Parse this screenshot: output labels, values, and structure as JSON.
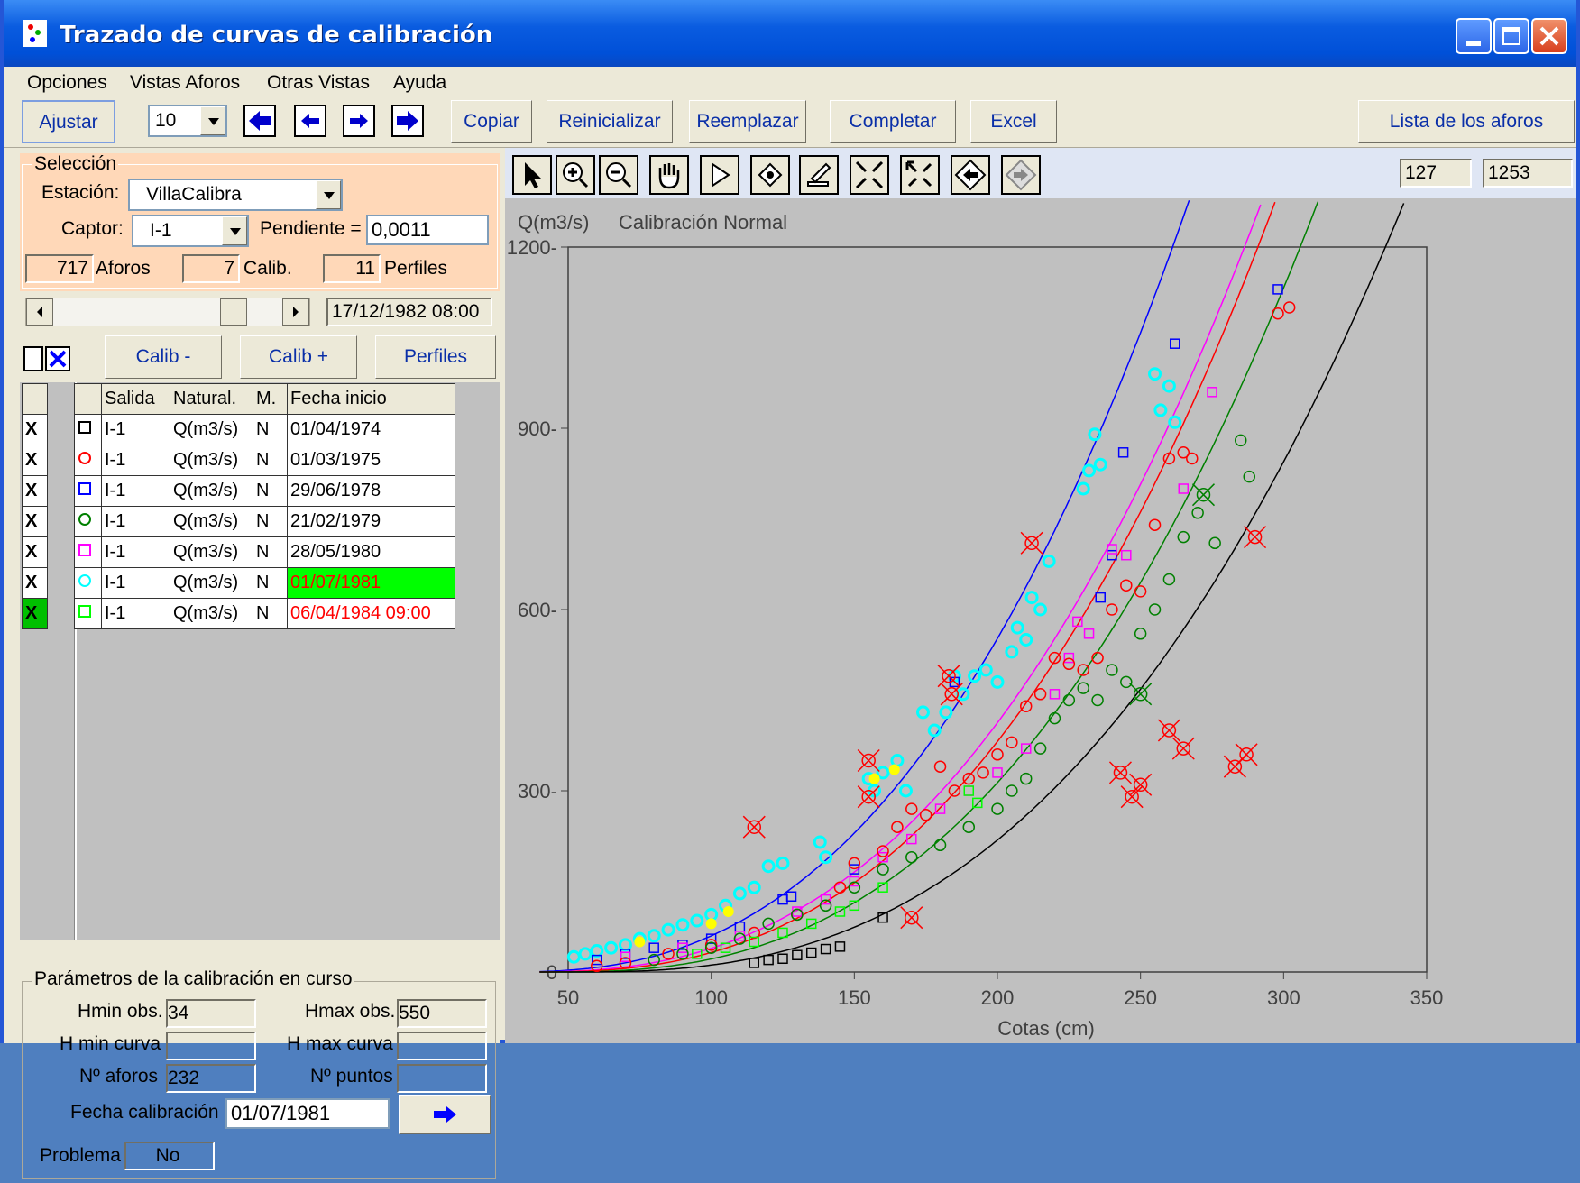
{
  "window": {
    "title": "Trazado de curvas de calibración"
  },
  "menu": [
    "Opciones",
    "Vistas Aforos",
    "Otras Vistas",
    "Ayuda"
  ],
  "toolbar": {
    "ajustar": "Ajustar",
    "step_value": "10",
    "copiar": "Copiar",
    "reinicializar": "Reinicializar",
    "reemplazar": "Reemplazar",
    "completar": "Completar",
    "excel": "Excel",
    "lista": "Lista de los aforos"
  },
  "seleccion": {
    "legend": "Selección",
    "estacion_label": "Estación:",
    "estacion_value": "VillaCalibra",
    "captor_label": "Captor:",
    "captor_value": "I-1",
    "pendiente_label": "Pendiente =",
    "pendiente_value": "0,0011",
    "aforos_count": "717",
    "aforos_label": "Aforos",
    "calib_count": "7",
    "calib_label": "Calib.",
    "perfiles_count": "11",
    "perfiles_label": "Perfiles"
  },
  "nav": {
    "date": "17/12/1982 08:00",
    "slider_fraction": 0.82,
    "calib_minus": "Calib -",
    "calib_plus": "Calib +",
    "perfiles": "Perfiles"
  },
  "table": {
    "headers": [
      "Salida",
      "Natural.",
      "M.",
      "Fecha inicio"
    ],
    "rows": [
      {
        "x": "X",
        "symbol": "square",
        "color": "#000000",
        "salida": "I-1",
        "natural": "Q(m3/s)",
        "m": "N",
        "fecha": "01/04/1974"
      },
      {
        "x": "X",
        "symbol": "circle",
        "color": "#ff0000",
        "salida": "I-1",
        "natural": "Q(m3/s)",
        "m": "N",
        "fecha": "01/03/1975"
      },
      {
        "x": "X",
        "symbol": "square",
        "color": "#0000ff",
        "salida": "I-1",
        "natural": "Q(m3/s)",
        "m": "N",
        "fecha": "29/06/1978"
      },
      {
        "x": "X",
        "symbol": "circle",
        "color": "#008000",
        "salida": "I-1",
        "natural": "Q(m3/s)",
        "m": "N",
        "fecha": "21/02/1979"
      },
      {
        "x": "X",
        "symbol": "square",
        "color": "#ff00ff",
        "salida": "I-1",
        "natural": "Q(m3/s)",
        "m": "N",
        "fecha": "28/05/1980"
      },
      {
        "x": "X",
        "symbol": "circle",
        "color": "#00ffff",
        "salida": "I-1",
        "natural": "Q(m3/s)",
        "m": "N",
        "fecha": "01/07/1981"
      },
      {
        "x": "X",
        "symbol": "square",
        "color": "#00ff00",
        "salida": "I-1",
        "natural": "Q(m3/s)",
        "m": "N",
        "fecha": "06/04/1984 09:00"
      }
    ]
  },
  "params": {
    "legend": "Parámetros de la calibración en curso",
    "hmin_obs_label": "Hmin obs.",
    "hmin_obs": "34",
    "hmax_obs_label": "Hmax obs.",
    "hmax_obs": "550",
    "hmin_curva_label": "H min curva",
    "hmin_curva": "",
    "hmax_curva_label": "H max curva",
    "hmax_curva": "",
    "n_aforos_label": "Nº aforos",
    "n_aforos": "232",
    "n_puntos_label": "Nº puntos",
    "n_puntos": "",
    "fecha_label": "Fecha calibración",
    "fecha": "01/07/1981",
    "problema_label": "Problema",
    "problema": "No"
  },
  "chart_toolbar": {
    "icons": [
      "pointer-icon",
      "zoom-in-icon",
      "zoom-out-icon",
      "pan-hand-icon",
      "select-arrow-icon",
      "fit-icon",
      "edit-icon",
      "shrink-icon",
      "expand-icon",
      "back-icon",
      "forward-icon"
    ],
    "coord_x": "127",
    "coord_y": "1253"
  },
  "chart_data": {
    "type": "scatter",
    "title": "Calibración Normal",
    "ylabel": "Q(m3/s)",
    "xlabel": "Cotas (cm)",
    "xlim": [
      50,
      350
    ],
    "ylim": [
      0,
      1200
    ],
    "x_ticks": [
      50,
      100,
      150,
      200,
      250,
      300,
      350
    ],
    "y_ticks": [
      0,
      300,
      600,
      900,
      1200
    ],
    "curves": [
      {
        "color": "#0000ff",
        "h0": 28,
        "a": 0.0011,
        "b": 2.55
      },
      {
        "color": "#ff00ff",
        "h0": 34,
        "a": 0.0009,
        "b": 2.55
      },
      {
        "color": "#ff0000",
        "h0": 38,
        "a": 0.0008,
        "b": 2.57
      },
      {
        "color": "#008000",
        "h0": 45,
        "a": 0.0007,
        "b": 2.58
      },
      {
        "color": "#000000",
        "h0": 52,
        "a": 0.00045,
        "b": 2.62
      }
    ],
    "series": [
      {
        "color": "#00ffff",
        "marker": "circle",
        "points": [
          [
            52,
            25
          ],
          [
            56,
            30
          ],
          [
            60,
            35
          ],
          [
            65,
            40
          ],
          [
            70,
            45
          ],
          [
            75,
            55
          ],
          [
            80,
            60
          ],
          [
            85,
            70
          ],
          [
            90,
            78
          ],
          [
            95,
            85
          ],
          [
            100,
            95
          ],
          [
            105,
            110
          ],
          [
            110,
            130
          ],
          [
            115,
            140
          ],
          [
            120,
            175
          ],
          [
            125,
            180
          ],
          [
            138,
            215
          ],
          [
            140,
            190
          ],
          [
            155,
            320
          ],
          [
            157,
            300
          ],
          [
            160,
            330
          ],
          [
            165,
            350
          ],
          [
            168,
            300
          ],
          [
            174,
            430
          ],
          [
            178,
            400
          ],
          [
            182,
            430
          ],
          [
            185,
            490
          ],
          [
            188,
            460
          ],
          [
            192,
            490
          ],
          [
            196,
            500
          ],
          [
            200,
            480
          ],
          [
            205,
            530
          ],
          [
            207,
            570
          ],
          [
            210,
            550
          ],
          [
            212,
            620
          ],
          [
            215,
            600
          ],
          [
            218,
            680
          ],
          [
            230,
            800
          ],
          [
            232,
            830
          ],
          [
            234,
            890
          ],
          [
            236,
            840
          ],
          [
            255,
            990
          ],
          [
            257,
            930
          ],
          [
            260,
            970
          ],
          [
            262,
            910
          ]
        ]
      },
      {
        "color": "#ffff00",
        "marker": "dot",
        "points": [
          [
            75,
            50
          ],
          [
            100,
            80
          ],
          [
            106,
            100
          ],
          [
            157,
            320
          ],
          [
            164,
            335
          ]
        ]
      },
      {
        "color": "#0000ff",
        "marker": "square",
        "points": [
          [
            60,
            20
          ],
          [
            70,
            30
          ],
          [
            80,
            40
          ],
          [
            90,
            45
          ],
          [
            100,
            55
          ],
          [
            110,
            75
          ],
          [
            125,
            120
          ],
          [
            128,
            125
          ],
          [
            150,
            170
          ],
          [
            185,
            480
          ],
          [
            236,
            620
          ],
          [
            240,
            690
          ],
          [
            244,
            860
          ],
          [
            262,
            1040
          ],
          [
            298,
            1130
          ]
        ]
      },
      {
        "color": "#ff00ff",
        "marker": "square",
        "points": [
          [
            70,
            25
          ],
          [
            90,
            40
          ],
          [
            110,
            60
          ],
          [
            130,
            100
          ],
          [
            140,
            120
          ],
          [
            150,
            150
          ],
          [
            160,
            190
          ],
          [
            170,
            220
          ],
          [
            180,
            270
          ],
          [
            190,
            300
          ],
          [
            200,
            330
          ],
          [
            210,
            370
          ],
          [
            220,
            460
          ],
          [
            225,
            520
          ],
          [
            228,
            580
          ],
          [
            232,
            560
          ],
          [
            240,
            700
          ],
          [
            245,
            690
          ],
          [
            265,
            800
          ],
          [
            275,
            960
          ]
        ]
      },
      {
        "color": "#ff0000",
        "marker": "circle",
        "points": [
          [
            60,
            10
          ],
          [
            70,
            15
          ],
          [
            85,
            30
          ],
          [
            100,
            45
          ],
          [
            115,
            65
          ],
          [
            130,
            95
          ],
          [
            145,
            140
          ],
          [
            150,
            180
          ],
          [
            160,
            200
          ],
          [
            165,
            240
          ],
          [
            170,
            270
          ],
          [
            175,
            260
          ],
          [
            180,
            340
          ],
          [
            185,
            300
          ],
          [
            190,
            320
          ],
          [
            195,
            330
          ],
          [
            200,
            360
          ],
          [
            205,
            380
          ],
          [
            210,
            440
          ],
          [
            215,
            460
          ],
          [
            220,
            520
          ],
          [
            225,
            510
          ],
          [
            230,
            500
          ],
          [
            235,
            520
          ],
          [
            240,
            600
          ],
          [
            245,
            640
          ],
          [
            250,
            630
          ],
          [
            255,
            740
          ],
          [
            260,
            850
          ],
          [
            265,
            860
          ],
          [
            268,
            850
          ],
          [
            298,
            1090
          ],
          [
            302,
            1100
          ]
        ]
      },
      {
        "color": "#008000",
        "marker": "circle",
        "points": [
          [
            80,
            20
          ],
          [
            90,
            30
          ],
          [
            100,
            40
          ],
          [
            110,
            55
          ],
          [
            120,
            80
          ],
          [
            130,
            95
          ],
          [
            140,
            110
          ],
          [
            150,
            140
          ],
          [
            160,
            170
          ],
          [
            170,
            190
          ],
          [
            180,
            210
          ],
          [
            190,
            240
          ],
          [
            200,
            270
          ],
          [
            205,
            300
          ],
          [
            210,
            320
          ],
          [
            215,
            370
          ],
          [
            220,
            420
          ],
          [
            225,
            450
          ],
          [
            230,
            470
          ],
          [
            235,
            450
          ],
          [
            240,
            500
          ],
          [
            245,
            480
          ],
          [
            250,
            560
          ],
          [
            255,
            600
          ],
          [
            260,
            650
          ],
          [
            265,
            720
          ],
          [
            270,
            760
          ],
          [
            276,
            710
          ],
          [
            285,
            880
          ],
          [
            288,
            820
          ]
        ]
      },
      {
        "color": "#00ff00",
        "marker": "square",
        "points": [
          [
            95,
            30
          ],
          [
            105,
            40
          ],
          [
            115,
            50
          ],
          [
            125,
            65
          ],
          [
            135,
            80
          ],
          [
            145,
            100
          ],
          [
            150,
            110
          ],
          [
            160,
            140
          ],
          [
            190,
            300
          ],
          [
            193,
            280
          ]
        ]
      },
      {
        "color": "#000000",
        "marker": "square",
        "points": [
          [
            115,
            15
          ],
          [
            120,
            20
          ],
          [
            125,
            22
          ],
          [
            130,
            28
          ],
          [
            135,
            32
          ],
          [
            140,
            38
          ],
          [
            145,
            42
          ],
          [
            160,
            90
          ]
        ]
      },
      {
        "color": "#ff0000",
        "marker": "xcircle",
        "points": [
          [
            115,
            240
          ],
          [
            155,
            350
          ],
          [
            155,
            290
          ],
          [
            170,
            90
          ],
          [
            183,
            490
          ],
          [
            184,
            460
          ],
          [
            212,
            710
          ],
          [
            260,
            400
          ],
          [
            265,
            370
          ],
          [
            243,
            330
          ],
          [
            247,
            290
          ],
          [
            250,
            310
          ],
          [
            283,
            340
          ],
          [
            287,
            360
          ],
          [
            290,
            720
          ]
        ]
      },
      {
        "color": "#008000",
        "marker": "xcircle",
        "points": [
          [
            250,
            460
          ],
          [
            272,
            790
          ]
        ]
      }
    ]
  }
}
